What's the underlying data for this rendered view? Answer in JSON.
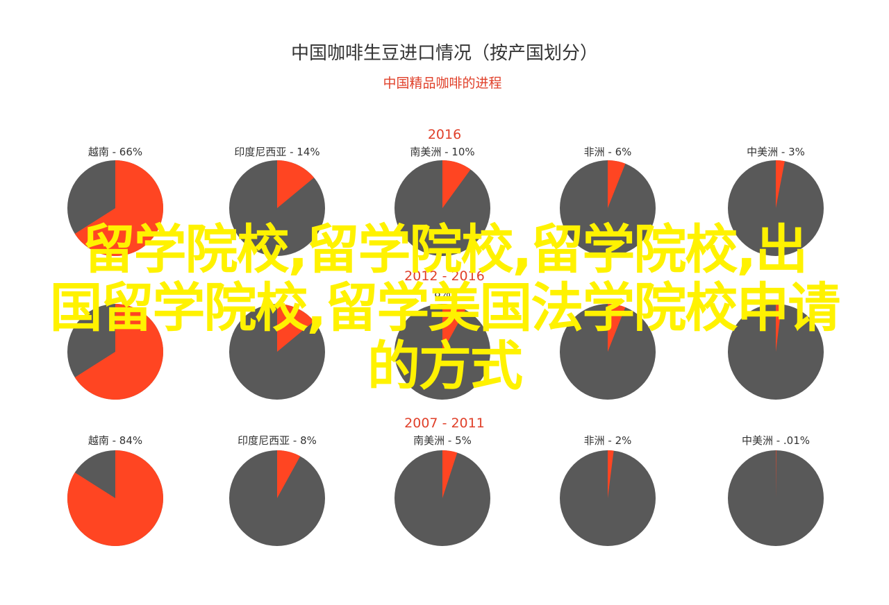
{
  "title": "中国咖啡生豆进口情况（按产国划分）",
  "subtitle": "中国精品咖啡的进程",
  "colors": {
    "slice": "#ff4522",
    "rest": "#595959",
    "title": "#333333",
    "accent": "#e0402a",
    "label": "#333333",
    "overlay": "#fff200"
  },
  "overlay_text": [
    "留学院校,留学院校,留学院校,出",
    "国留学院校,留学美国法学院校申请",
    "的方式"
  ],
  "chart_data": [
    {
      "type": "pie",
      "period": "2016",
      "pies": [
        {
          "label": "越南",
          "value_label": "66%",
          "value": 66
        },
        {
          "label": "印度尼西亚",
          "value_label": "14%",
          "value": 14
        },
        {
          "label": "南美洲",
          "value_label": "10%",
          "value": 10
        },
        {
          "label": "非洲",
          "value_label": "6%",
          "value": 6
        },
        {
          "label": "中美洲",
          "value_label": "3%",
          "value": 3
        }
      ]
    },
    {
      "type": "pie",
      "period": "2012 - 2016",
      "pies": [
        {
          "label": "",
          "value_label": "",
          "value": 66
        },
        {
          "label": "",
          "value_label": "",
          "value": 14
        },
        {
          "label": "",
          "value_label": "8%",
          "value": 8
        },
        {
          "label": "",
          "value_label": "",
          "value": 6
        },
        {
          "label": "",
          "value_label": "",
          "value": 2
        }
      ]
    },
    {
      "type": "pie",
      "period": "2007 - 2011",
      "pies": [
        {
          "label": "越南",
          "value_label": "84%",
          "value": 84
        },
        {
          "label": "印度尼西亚",
          "value_label": "8%",
          "value": 8
        },
        {
          "label": "南美洲",
          "value_label": "5%",
          "value": 5
        },
        {
          "label": "非洲",
          "value_label": "2%",
          "value": 2
        },
        {
          "label": "中美洲",
          "value_label": ".01%",
          "value": 0.01
        }
      ]
    }
  ]
}
